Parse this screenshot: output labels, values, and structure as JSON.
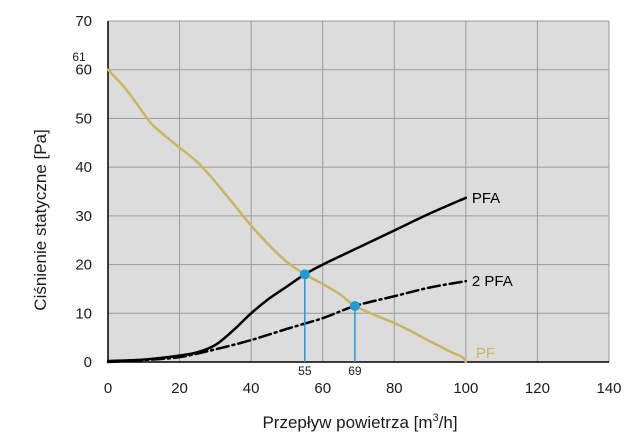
{
  "chart_data": {
    "type": "line",
    "xlabel_prefix": "Przepływ powietrza [m",
    "xlabel_sup": "3",
    "xlabel_suffix": "/h]",
    "ylabel": "Ciśnienie statyczne [Pa]",
    "xlim": [
      0,
      140
    ],
    "ylim": [
      0,
      70
    ],
    "x_ticks": [
      0,
      20,
      40,
      60,
      80,
      100,
      120,
      140
    ],
    "y_ticks": [
      0,
      10,
      20,
      30,
      40,
      50,
      60,
      70
    ],
    "grid": true,
    "background_color": "#dcdcdc",
    "y_annotation": {
      "value": 61,
      "label": "61"
    },
    "series": [
      {
        "name": "PFA",
        "color": "#000000",
        "style": "solid",
        "points": [
          [
            0,
            0.2
          ],
          [
            10,
            0.5
          ],
          [
            20,
            1.3
          ],
          [
            25,
            2
          ],
          [
            30,
            3.5
          ],
          [
            35,
            6.5
          ],
          [
            40,
            10
          ],
          [
            45,
            13
          ],
          [
            50,
            15.5
          ],
          [
            55,
            18
          ],
          [
            60,
            20
          ],
          [
            70,
            23.5
          ],
          [
            80,
            27
          ],
          [
            90,
            30.5
          ],
          [
            100,
            33.7
          ]
        ]
      },
      {
        "name": "2 PFA",
        "color": "#000000",
        "style": "dashdot",
        "points": [
          [
            0,
            0
          ],
          [
            10,
            0.4
          ],
          [
            20,
            1
          ],
          [
            30,
            2.6
          ],
          [
            40,
            4.5
          ],
          [
            50,
            6.8
          ],
          [
            60,
            9
          ],
          [
            69,
            11.5
          ],
          [
            80,
            13.5
          ],
          [
            90,
            15.3
          ],
          [
            100,
            16.6
          ]
        ]
      },
      {
        "name": "PF",
        "color": "#c8b560",
        "style": "solid",
        "points": [
          [
            0,
            60
          ],
          [
            5,
            56
          ],
          [
            10,
            51
          ],
          [
            12,
            49
          ],
          [
            15,
            47
          ],
          [
            20,
            44
          ],
          [
            25,
            41
          ],
          [
            30,
            37
          ],
          [
            35,
            32.5
          ],
          [
            40,
            28
          ],
          [
            45,
            24
          ],
          [
            50,
            20.5
          ],
          [
            55,
            18
          ],
          [
            60,
            16
          ],
          [
            65,
            13.8
          ],
          [
            69,
            11.5
          ],
          [
            75,
            9.5
          ],
          [
            80,
            8
          ],
          [
            85,
            6.2
          ],
          [
            88,
            5
          ],
          [
            92,
            3.5
          ],
          [
            96,
            2
          ],
          [
            99,
            1
          ],
          [
            100,
            0
          ]
        ]
      }
    ],
    "intersections": [
      {
        "x": 55,
        "y": 18,
        "label": "55"
      },
      {
        "x": 69,
        "y": 11.5,
        "label": "69"
      }
    ],
    "intersection_color": "#1e9ad6"
  }
}
